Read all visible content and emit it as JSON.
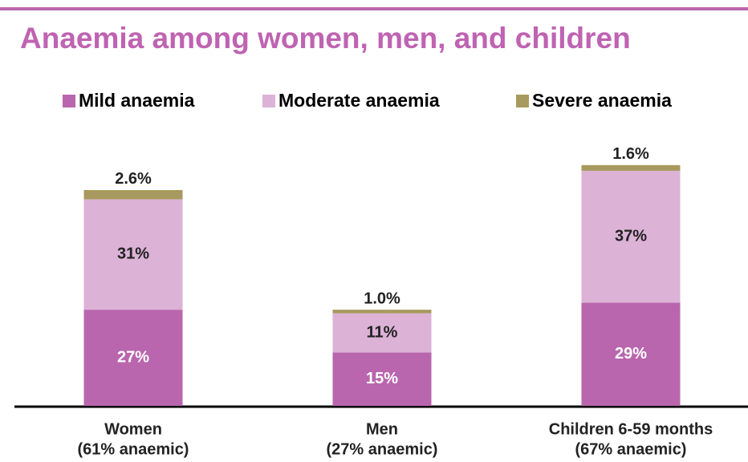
{
  "chart_data": {
    "type": "stacked_bar",
    "title": "Anaemia among women, men, and children",
    "categories": [
      [
        "Women",
        "(61% anaemic)"
      ],
      [
        "Men",
        "(27% anaemic)"
      ],
      [
        "Children 6-59 months",
        "(67% anaemic)"
      ]
    ],
    "series": [
      {
        "name": "Mild anaemia",
        "color": "#b966ae",
        "values": [
          27,
          15,
          29
        ],
        "value_labels": [
          "27%",
          "15%",
          "29%"
        ]
      },
      {
        "name": "Moderate anaemia",
        "color": "#dcb2d6",
        "values": [
          31,
          11,
          37
        ],
        "value_labels": [
          "31%",
          "11%",
          "37%"
        ]
      },
      {
        "name": "Severe anaemia",
        "color": "#a89a5e",
        "values": [
          2.6,
          1.0,
          1.6
        ],
        "value_labels": [
          "2.6%",
          "1.0%",
          "1.6%"
        ]
      }
    ]
  }
}
